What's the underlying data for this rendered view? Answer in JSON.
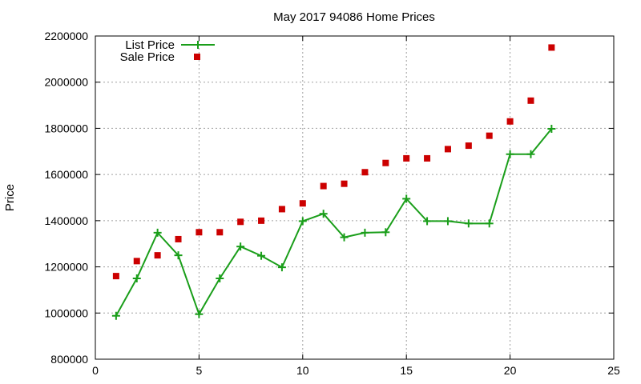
{
  "chart_data": {
    "type": "line",
    "title": "May 2017 94086 Home Prices",
    "xlabel": "",
    "ylabel": "Price",
    "xlim": [
      0,
      25
    ],
    "ylim": [
      800000,
      2200000
    ],
    "x_ticks": [
      0,
      5,
      10,
      15,
      20,
      25
    ],
    "y_ticks": [
      800000,
      1000000,
      1200000,
      1400000,
      1600000,
      1800000,
      2000000,
      2200000
    ],
    "grid": true,
    "legend_position": "top-left",
    "series": [
      {
        "name": "List Price",
        "style": "line-with-plus-markers",
        "color": "#1a9e1a",
        "x": [
          1,
          2,
          3,
          4,
          5,
          6,
          7,
          8,
          9,
          10,
          11,
          12,
          13,
          14,
          15,
          16,
          17,
          18,
          19,
          20,
          21,
          22
        ],
        "values": [
          988000,
          1150000,
          1348000,
          1250000,
          995000,
          1150000,
          1288000,
          1248000,
          1198000,
          1398000,
          1430000,
          1328000,
          1348000,
          1350000,
          1495000,
          1398000,
          1398000,
          1388000,
          1388000,
          1688000,
          1688000,
          1798000
        ]
      },
      {
        "name": "Sale Price",
        "style": "square-markers",
        "color": "#cc0000",
        "x": [
          1,
          2,
          3,
          4,
          5,
          6,
          7,
          8,
          9,
          10,
          11,
          12,
          13,
          14,
          15,
          16,
          17,
          18,
          19,
          20,
          21,
          22
        ],
        "values": [
          1160000,
          1225000,
          1250000,
          1320000,
          1350000,
          1350000,
          1395000,
          1400000,
          1450000,
          1475000,
          1550000,
          1560000,
          1610000,
          1650000,
          1670000,
          1670000,
          1710000,
          1725000,
          1768000,
          1830000,
          1920000,
          2150000
        ]
      }
    ]
  }
}
